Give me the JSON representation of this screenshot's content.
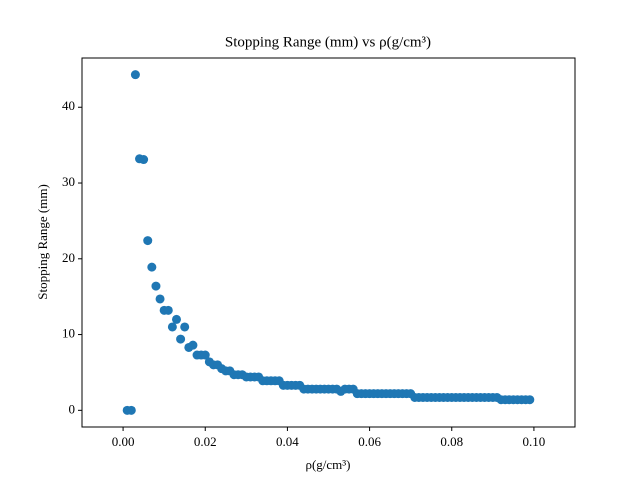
{
  "chart_data": {
    "type": "scatter",
    "title": "Stopping Range (mm) vs ρ(g/cm³)",
    "x_label": "ρ(g/cm³)",
    "y_label": "Stopping Range (mm)",
    "color": "#1f77b4",
    "x": [
      0.001,
      0.002,
      0.003,
      0.004,
      0.005,
      0.006,
      0.007,
      0.008,
      0.009,
      0.01,
      0.011,
      0.012,
      0.013,
      0.014,
      0.015,
      0.016,
      0.017,
      0.018,
      0.019,
      0.02,
      0.021,
      0.022,
      0.023,
      0.024,
      0.025,
      0.026,
      0.027,
      0.028,
      0.029,
      0.03,
      0.031,
      0.032,
      0.033,
      0.034,
      0.035,
      0.036,
      0.037,
      0.038,
      0.039,
      0.04,
      0.041,
      0.042,
      0.043,
      0.044,
      0.045,
      0.046,
      0.047,
      0.048,
      0.049,
      0.05,
      0.051,
      0.052,
      0.053,
      0.054,
      0.055,
      0.056,
      0.057,
      0.058,
      0.059,
      0.06,
      0.061,
      0.062,
      0.063,
      0.064,
      0.065,
      0.066,
      0.067,
      0.068,
      0.069,
      0.07,
      0.071,
      0.072,
      0.073,
      0.074,
      0.075,
      0.076,
      0.077,
      0.078,
      0.079,
      0.08,
      0.081,
      0.082,
      0.083,
      0.084,
      0.085,
      0.086,
      0.087,
      0.088,
      0.089,
      0.09,
      0.091,
      0.092,
      0.093,
      0.094,
      0.095,
      0.096,
      0.097,
      0.098,
      0.099
    ],
    "values": [
      0,
      0,
      44.3,
      33.2,
      33.1,
      22.4,
      18.9,
      16.4,
      14.7,
      13.2,
      13.2,
      11.0,
      12.0,
      9.4,
      11.0,
      8.3,
      8.6,
      7.3,
      7.3,
      7.3,
      6.4,
      6.0,
      6.0,
      5.5,
      5.2,
      5.2,
      4.7,
      4.7,
      4.7,
      4.4,
      4.4,
      4.4,
      4.4,
      3.9,
      3.9,
      3.9,
      3.9,
      3.9,
      3.3,
      3.3,
      3.3,
      3.3,
      3.3,
      2.8,
      2.8,
      2.8,
      2.8,
      2.8,
      2.8,
      2.8,
      2.8,
      2.8,
      2.5,
      2.8,
      2.8,
      2.8,
      2.2,
      2.2,
      2.2,
      2.2,
      2.2,
      2.2,
      2.2,
      2.2,
      2.2,
      2.2,
      2.2,
      2.2,
      2.2,
      2.2,
      1.7,
      1.7,
      1.7,
      1.7,
      1.7,
      1.7,
      1.7,
      1.7,
      1.7,
      1.7,
      1.7,
      1.7,
      1.7,
      1.7,
      1.7,
      1.7,
      1.7,
      1.7,
      1.7,
      1.7,
      1.7,
      1.4,
      1.4,
      1.4,
      1.4,
      1.4,
      1.4,
      1.4,
      1.4
    ],
    "xlim": [
      -0.01,
      0.11
    ],
    "xticks": [
      {
        "value": 0,
        "label": "0.00"
      },
      0.02,
      0.04,
      0.06,
      0.08,
      {
        "value": 0.1,
        "label": "0.10"
      }
    ],
    "ylim": [
      -2.2,
      46.5
    ],
    "yticks": [
      0,
      10,
      20,
      30,
      40
    ]
  }
}
